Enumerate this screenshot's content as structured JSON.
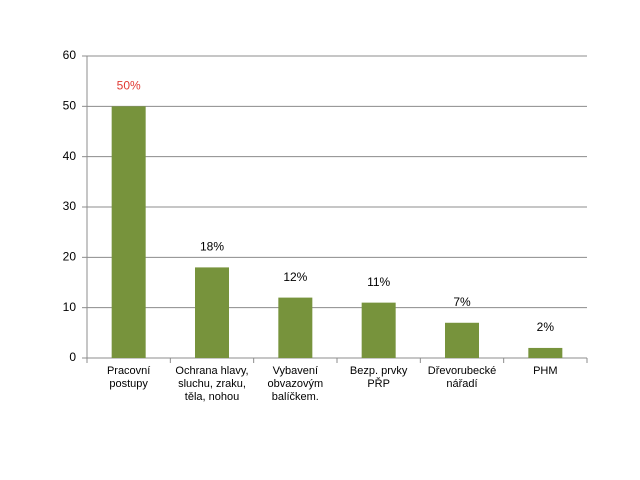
{
  "chart_data": {
    "type": "bar",
    "categories": [
      "Pracovní postupy",
      "Ochrana hlavy, sluchu, zraku, těla, nohou",
      "Vybavení obvazovým balíčkem.",
      "Bezp. prvky PŘP",
      "Dřevorubecké nářadí",
      "PHM"
    ],
    "values": [
      50,
      18,
      12,
      11,
      7,
      2
    ],
    "value_labels": [
      "50%",
      "18%",
      "12%",
      "11%",
      "7%",
      "2%"
    ],
    "value_label_colors": [
      "#e03a33",
      "#000000",
      "#000000",
      "#000000",
      "#000000",
      "#000000"
    ],
    "color": "#77933c",
    "ylim": [
      0,
      60
    ],
    "yticks": [
      0,
      10,
      20,
      30,
      40,
      50,
      60
    ],
    "grid": true
  }
}
